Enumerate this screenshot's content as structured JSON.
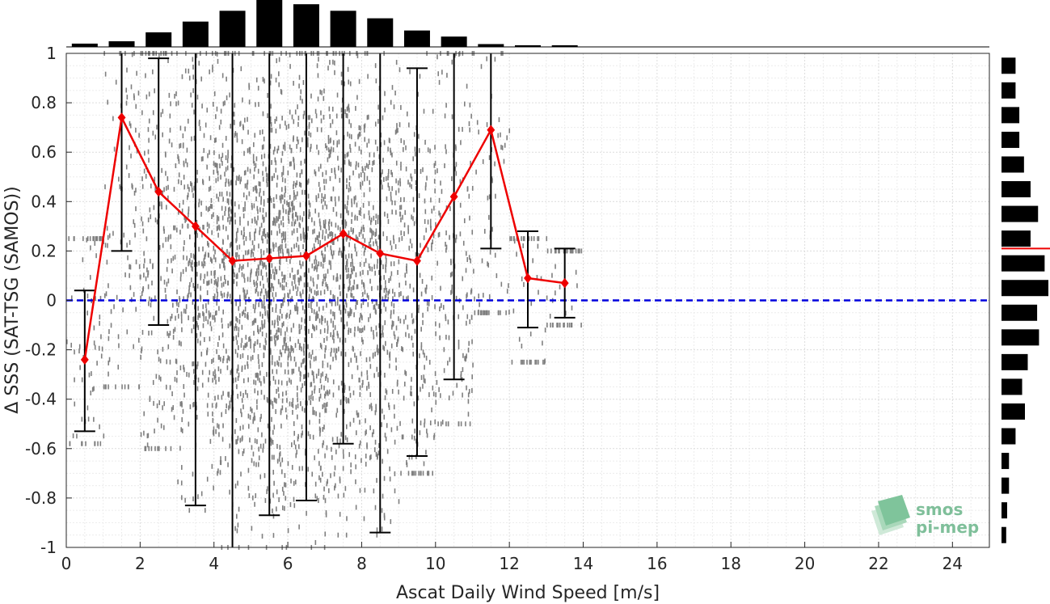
{
  "colors": {
    "mean_line": "#ee0000",
    "zero_line": "#0000dd",
    "scatter": "#7f7f7f",
    "errorbar": "#000000",
    "histogram": "#000000",
    "logo": "#7fbf9a"
  },
  "logo": {
    "line1": "smos",
    "line2": "pi-mep",
    "icon": "layered-squares-icon"
  },
  "chart_data": {
    "type": "scatter",
    "title": "",
    "xlabel": "Ascat Daily Wind Speed [m/s]",
    "ylabel": "Δ SSS (SAT-TSG (SAMOS))",
    "xlim": [
      0,
      25
    ],
    "ylim": [
      -1,
      1
    ],
    "x_ticks": [
      0,
      2,
      4,
      6,
      8,
      10,
      12,
      14,
      16,
      18,
      20,
      22,
      24
    ],
    "y_ticks": [
      1,
      0.8,
      0.6,
      0.4,
      0.2,
      0,
      -0.2,
      -0.4,
      -0.6,
      -0.8,
      -1
    ],
    "y_tick_labels": [
      "1",
      "0.8",
      "0.6",
      "0.4",
      "0.2",
      "0",
      "-0.2",
      "-0.4",
      "-0.6",
      "-0.8",
      "-1"
    ],
    "grid": true,
    "zero_line": 0,
    "bin_means": {
      "x": [
        0.5,
        1.5,
        2.5,
        3.5,
        4.5,
        5.5,
        6.5,
        7.5,
        8.5,
        9.5,
        10.5,
        11.5,
        12.5,
        13.5
      ],
      "y": [
        -0.24,
        0.74,
        0.44,
        0.3,
        0.16,
        0.17,
        0.18,
        0.27,
        0.19,
        0.16,
        0.42,
        0.69,
        0.09,
        0.07
      ]
    },
    "error_bars": {
      "x": [
        0.5,
        1.5,
        2.5,
        3.5,
        4.5,
        5.5,
        6.5,
        7.5,
        8.5,
        9.5,
        10.5,
        11.5,
        12.5,
        13.5
      ],
      "lower": [
        -0.53,
        0.2,
        -0.1,
        -0.83,
        -1.3,
        -0.87,
        -0.81,
        -0.58,
        -0.94,
        -0.63,
        -0.32,
        0.21,
        -0.11,
        -0.07
      ],
      "upper": [
        0.04,
        1.3,
        0.98,
        1.3,
        1.3,
        1.3,
        1.3,
        1.3,
        1.3,
        0.94,
        1.3,
        1.3,
        0.28,
        0.21
      ]
    },
    "scatter_envelope": {
      "x": [
        0.5,
        1.5,
        2.5,
        3.5,
        4.5,
        5.5,
        6.5,
        7.5,
        8.5,
        9.5,
        10.5,
        11.5,
        12.5,
        13.5
      ],
      "ymin": [
        -0.58,
        -0.35,
        -0.6,
        -0.85,
        -1.0,
        -1.0,
        -1.0,
        -0.95,
        -0.95,
        -0.7,
        -0.5,
        -0.05,
        -0.25,
        -0.1
      ],
      "ymax": [
        0.25,
        1.0,
        1.0,
        1.0,
        1.0,
        1.0,
        1.0,
        1.0,
        1.0,
        1.0,
        1.0,
        1.0,
        0.25,
        0.2
      ]
    },
    "x_histogram": {
      "centers": [
        0.5,
        1.5,
        2.5,
        3.5,
        4.5,
        5.5,
        6.5,
        7.5,
        8.5,
        9.5,
        10.5,
        11.5,
        12.5,
        13.5
      ],
      "relative_heights": [
        0.07,
        0.12,
        0.31,
        0.54,
        0.77,
        1.0,
        0.91,
        0.77,
        0.61,
        0.35,
        0.22,
        0.06,
        0.02,
        0.02
      ]
    },
    "y_histogram": {
      "centers": [
        0.95,
        0.85,
        0.75,
        0.65,
        0.55,
        0.45,
        0.35,
        0.25,
        0.15,
        0.05,
        -0.05,
        -0.15,
        -0.25,
        -0.35,
        -0.45,
        -0.55,
        -0.65,
        -0.75,
        -0.85,
        -0.95
      ],
      "relative_widths": [
        0.3,
        0.3,
        0.38,
        0.38,
        0.48,
        0.62,
        0.78,
        0.62,
        0.92,
        1.0,
        0.76,
        0.8,
        0.56,
        0.44,
        0.5,
        0.3,
        0.16,
        0.16,
        0.12,
        0.1
      ],
      "mean_marker": 0.21
    }
  }
}
